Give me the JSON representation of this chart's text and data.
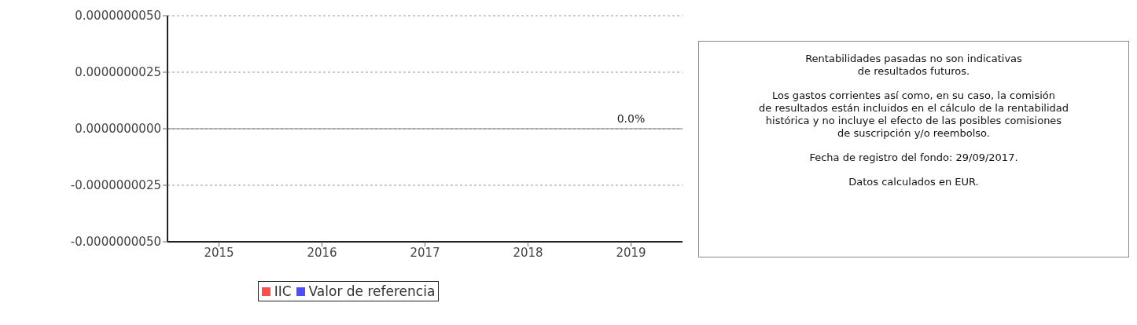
{
  "chart_data": {
    "type": "bar",
    "categories": [
      "2015",
      "2016",
      "2017",
      "2018",
      "2019"
    ],
    "series": [
      {
        "name": "IIC",
        "color": "#ff4d4d",
        "values": [
          null,
          null,
          null,
          null,
          0
        ],
        "value_labels": [
          null,
          null,
          null,
          null,
          "0.0%"
        ]
      },
      {
        "name": "Valor de referencia",
        "color": "#4d4dff",
        "values": [
          null,
          null,
          null,
          null,
          null
        ]
      }
    ],
    "ylim": [
      -5e-09,
      5e-09
    ],
    "yticks": [
      {
        "value": -5e-09,
        "label": "-0.0000000050"
      },
      {
        "value": -2.5e-09,
        "label": "-0.0000000025"
      },
      {
        "value": 0,
        "label": "0.0000000000"
      },
      {
        "value": 2.5e-09,
        "label": "0.0000000025"
      },
      {
        "value": 5e-09,
        "label": "0.0000000050"
      }
    ],
    "grid": "y",
    "ref_lines": [
      {
        "axis": "y",
        "value": 0,
        "color": "#808080",
        "line_style": "solid"
      }
    ],
    "legend": "bottom",
    "annotations": [
      "Rentabilidades pasadas no son indicativas\nde resultados futuros.",
      "Los gastos corrientes así como, en su caso, la comisión\nde resultados están incluidos en el cálculo de la rentabilidad\nhistórica y no incluye el efecto de las posibles comisiones\nde suscripción y/o reembolso.",
      "Fecha de registro del fondo: 29/09/2017.",
      "Datos calculados en EUR."
    ]
  }
}
